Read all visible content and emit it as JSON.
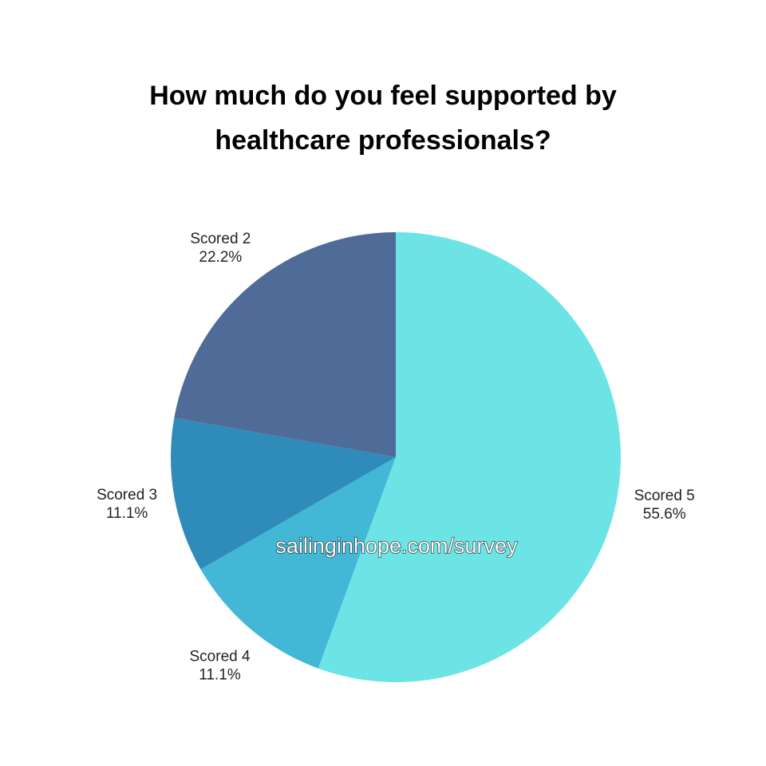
{
  "chart_data": {
    "type": "pie",
    "title": "How much do you feel supported by healthcare professionals?",
    "categories": [
      "Scored 5",
      "Scored 4",
      "Scored 3",
      "Scored 2"
    ],
    "values": [
      55.6,
      11.1,
      11.1,
      22.2
    ],
    "value_labels": [
      "55.6%",
      "11.1%",
      "11.1%",
      "22.2%"
    ],
    "colors": [
      "#6ce4e6",
      "#42b8d6",
      "#2e8bba",
      "#4f6c98"
    ],
    "annotation": "sailinginhope.com/survey"
  }
}
